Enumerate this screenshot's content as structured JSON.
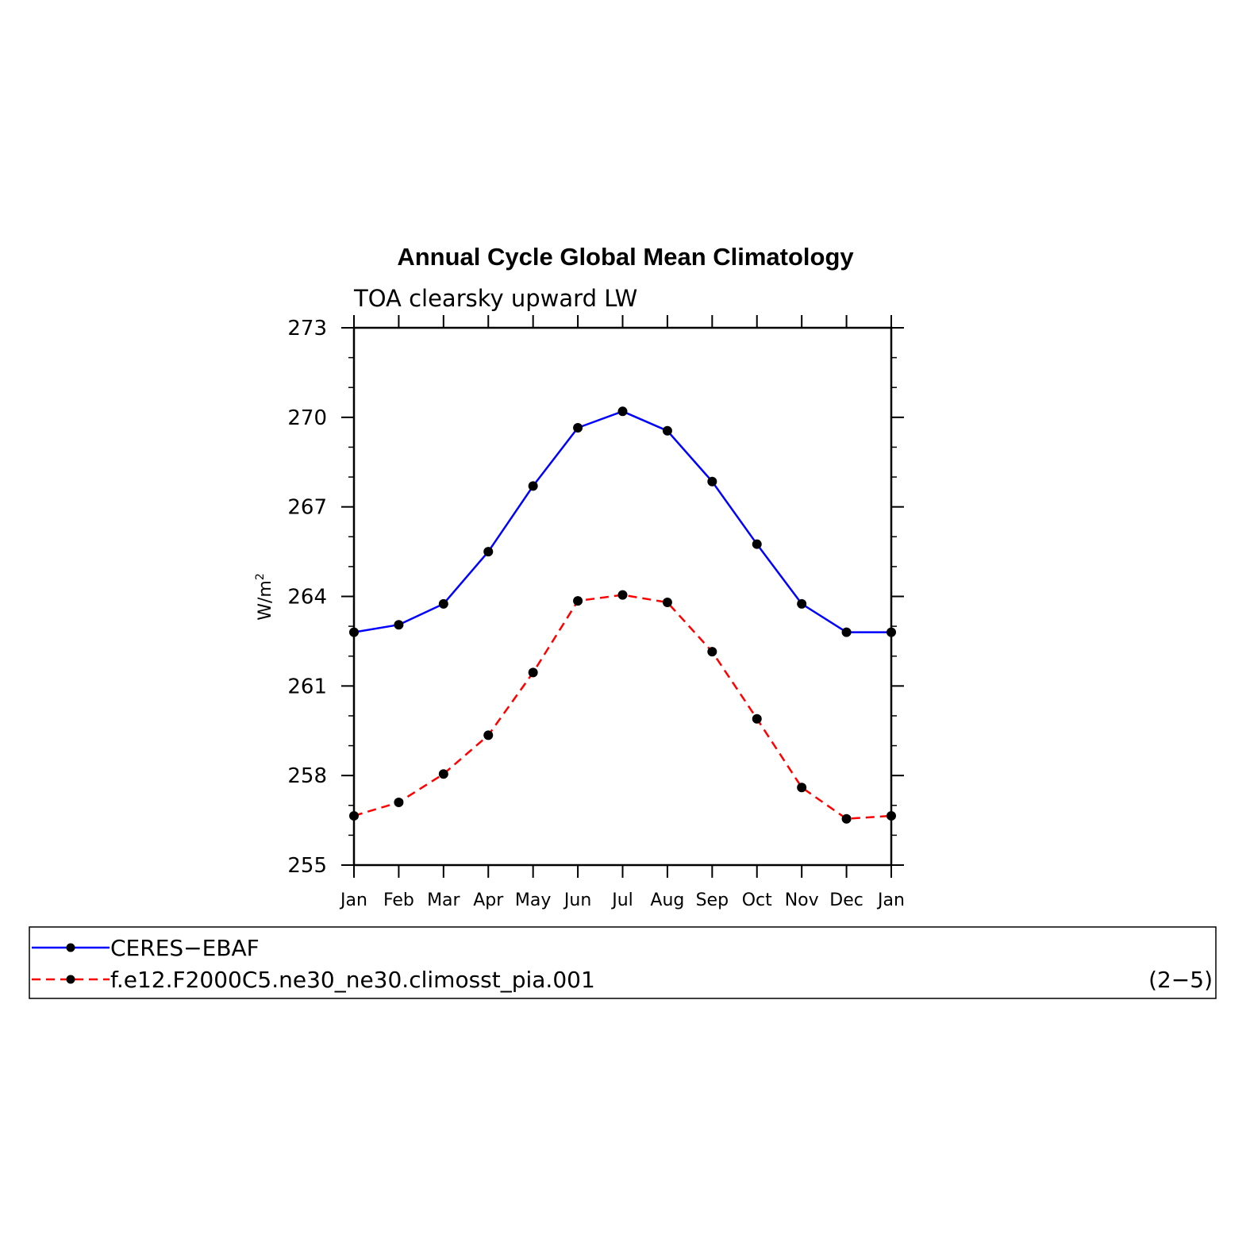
{
  "chart_data": {
    "type": "line",
    "title": "Annual Cycle Global Mean Climatology",
    "subtitle": "TOA clearsky upward LW",
    "ylabel": "W/m",
    "ylabel_sup": "2",
    "categories": [
      "Jan",
      "Feb",
      "Mar",
      "Apr",
      "May",
      "Jun",
      "Jul",
      "Aug",
      "Sep",
      "Oct",
      "Nov",
      "Dec",
      "Jan"
    ],
    "ylim": [
      255,
      273
    ],
    "yticks": [
      255,
      258,
      261,
      264,
      267,
      270,
      273
    ],
    "series": [
      {
        "name": "CERES−EBAF",
        "color": "#0000ff",
        "dash": "solid",
        "marker": "dot",
        "values": [
          262.8,
          263.05,
          263.75,
          265.5,
          267.7,
          269.65,
          270.2,
          269.55,
          267.85,
          265.75,
          263.75,
          262.8,
          262.8
        ]
      },
      {
        "name": "f.e12.F2000C5.ne30_ne30.climosst_pia.001",
        "color": "#ff0000",
        "dash": "dashed",
        "marker": "dot",
        "values": [
          256.65,
          257.1,
          258.05,
          259.35,
          261.45,
          263.85,
          264.05,
          263.8,
          262.15,
          259.9,
          257.6,
          256.55,
          256.65
        ]
      }
    ],
    "legend": {
      "placement": "bottom",
      "note": "(2−5)"
    },
    "grid": false
  }
}
